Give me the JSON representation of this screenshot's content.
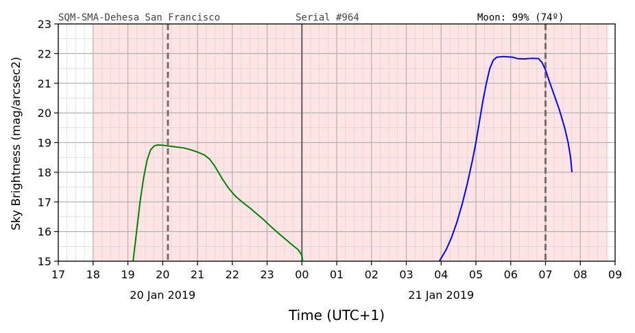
{
  "chart_data": {
    "type": "line",
    "header": {
      "site": "SQM-SMA-Dehesa San Francisco",
      "serial": "Serial #964",
      "moon": "Moon: 99% (74º)"
    },
    "xlabel": "Time (UTC+1)",
    "ylabel": "Sky Brightness (mag/arcsec2)",
    "xlim": [
      17,
      33
    ],
    "ylim": [
      15,
      23
    ],
    "x_tick_labels": [
      "17",
      "18",
      "19",
      "20",
      "21",
      "22",
      "23",
      "00",
      "01",
      "02",
      "03",
      "04",
      "05",
      "06",
      "07",
      "08",
      "09"
    ],
    "y_ticks": [
      15,
      16,
      17,
      18,
      19,
      20,
      21,
      22,
      23
    ],
    "date_labels": [
      {
        "x": 20,
        "text": "20 Jan 2019"
      },
      {
        "x": 28,
        "text": "21 Jan 2019"
      }
    ],
    "night_band": [
      18.0,
      32.8
    ],
    "midnight_line": 24,
    "twilight_lines": [
      20.15,
      31.0
    ],
    "grid": true,
    "colors": {
      "night_band": "#ffe4e6",
      "grid": "#b0b0b0",
      "midnight": "#5b5b5b",
      "twilight": "#7b6b6b",
      "header_text": "#444444"
    },
    "series": [
      {
        "color": "#008000",
        "points": [
          [
            19.15,
            15.0
          ],
          [
            19.25,
            16.0
          ],
          [
            19.35,
            17.0
          ],
          [
            19.45,
            17.8
          ],
          [
            19.55,
            18.4
          ],
          [
            19.65,
            18.75
          ],
          [
            19.75,
            18.88
          ],
          [
            19.85,
            18.92
          ],
          [
            20.0,
            18.91
          ],
          [
            20.2,
            18.88
          ],
          [
            20.4,
            18.85
          ],
          [
            20.6,
            18.82
          ],
          [
            20.8,
            18.76
          ],
          [
            21.0,
            18.68
          ],
          [
            21.2,
            18.58
          ],
          [
            21.35,
            18.44
          ],
          [
            21.5,
            18.2
          ],
          [
            21.7,
            17.8
          ],
          [
            21.9,
            17.45
          ],
          [
            22.1,
            17.18
          ],
          [
            22.3,
            16.98
          ],
          [
            22.5,
            16.8
          ],
          [
            22.7,
            16.6
          ],
          [
            22.9,
            16.4
          ],
          [
            23.1,
            16.18
          ],
          [
            23.3,
            15.97
          ],
          [
            23.5,
            15.77
          ],
          [
            23.7,
            15.57
          ],
          [
            23.9,
            15.38
          ],
          [
            24.0,
            15.2
          ],
          [
            24.02,
            15.02
          ]
        ]
      },
      {
        "color": "#0000ff",
        "points": [
          [
            27.95,
            15.0
          ],
          [
            28.05,
            15.2
          ],
          [
            28.15,
            15.4
          ],
          [
            28.3,
            15.8
          ],
          [
            28.45,
            16.3
          ],
          [
            28.6,
            16.9
          ],
          [
            28.75,
            17.6
          ],
          [
            28.9,
            18.4
          ],
          [
            29.0,
            19.0
          ],
          [
            29.1,
            19.7
          ],
          [
            29.2,
            20.4
          ],
          [
            29.3,
            21.0
          ],
          [
            29.4,
            21.5
          ],
          [
            29.5,
            21.78
          ],
          [
            29.6,
            21.88
          ],
          [
            29.8,
            21.9
          ],
          [
            30.05,
            21.88
          ],
          [
            30.2,
            21.83
          ],
          [
            30.4,
            21.82
          ],
          [
            30.6,
            21.84
          ],
          [
            30.8,
            21.83
          ],
          [
            30.9,
            21.7
          ],
          [
            31.0,
            21.45
          ],
          [
            31.1,
            21.1
          ],
          [
            31.25,
            20.6
          ],
          [
            31.4,
            20.1
          ],
          [
            31.55,
            19.5
          ],
          [
            31.65,
            19.0
          ],
          [
            31.72,
            18.5
          ],
          [
            31.76,
            18.0
          ]
        ]
      }
    ]
  }
}
